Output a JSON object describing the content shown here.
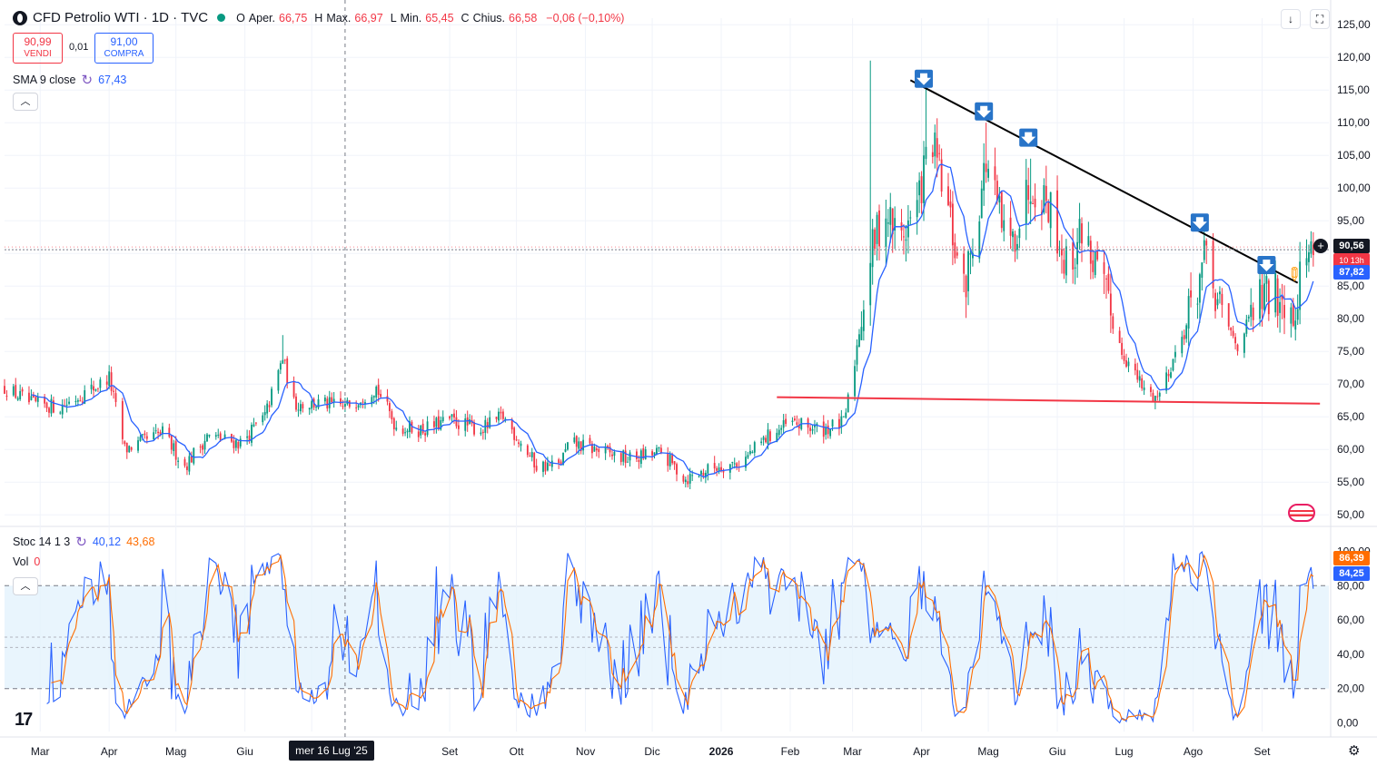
{
  "header": {
    "title": "CFD Petrolio WTI · 1D · TVC",
    "ohlc": [
      {
        "k": "O",
        "v": ""
      },
      {
        "k": "Aper.",
        "v": "66,75"
      },
      {
        "k": "H",
        "v": ""
      },
      {
        "k": "Max.",
        "v": "66,97"
      },
      {
        "k": "L",
        "v": ""
      },
      {
        "k": "Min.",
        "v": "65,45"
      },
      {
        "k": "C",
        "v": ""
      },
      {
        "k": "Chius.",
        "v": "66,58"
      }
    ],
    "change": "−0,06 (−0,10%)",
    "sell_price": "90,99",
    "sell_label": "VENDI",
    "spread": "0,01",
    "buy_price": "91,00",
    "buy_label": "COMPRA"
  },
  "indicators": {
    "sma_label": "SMA 9 close",
    "sma_value": "67,43",
    "stoch_label": "Stoc 14 1 3",
    "stoch_k": "40,12",
    "stoch_d": "43,68",
    "vol_label": "Vol",
    "vol_value": "0"
  },
  "price_tags": {
    "last": "90,56",
    "sub": "10 13h",
    "sma": "87,82",
    "stoch_d": "86,39",
    "stoch_k": "84,25"
  },
  "crosshair_date": "mer 16 Lug '25",
  "colors": {
    "up": "#089981",
    "down": "#f23645",
    "sma": "#2962ff",
    "stoch_k": "#2962ff",
    "stoch_d": "#ff6d00",
    "trend": "#000000",
    "support": "#f23645",
    "stoch_band": "#e3f2fd"
  },
  "chart_data": {
    "type": "candlestick",
    "y_axis_labels": [
      "125,00",
      "120,00",
      "115,00",
      "110,00",
      "105,00",
      "100,00",
      "95,00",
      "90,00",
      "85,00",
      "80,00",
      "75,00",
      "70,00",
      "65,00",
      "60,00",
      "55,00",
      "50,00"
    ],
    "y_range": [
      48.5,
      126
    ],
    "x_axis_labels": [
      "Mar",
      "Apr",
      "Mag",
      "Giu",
      "Lug",
      "Set",
      "Ott",
      "Nov",
      "Dic",
      "2026",
      "Feb",
      "Mar",
      "Apr",
      "Mag",
      "Giu",
      "Lug",
      "Ago",
      "Set"
    ],
    "x_axis_label_dates": [
      "2025-03-01",
      "2025-04-01",
      "2025-05-01",
      "2025-06-01",
      "2025-07-01",
      "2025-09-01",
      "2025-10-01",
      "2025-11-01",
      "2025-12-01",
      "2026-01-01",
      "2026-02-01",
      "2026-03-01",
      "2026-04-01",
      "2026-05-01",
      "2026-06-01",
      "2026-07-01",
      "2026-08-01",
      "2026-09-01"
    ],
    "date_range": [
      "2025-02-13",
      "2026-10-01"
    ],
    "price_anchors": [
      [
        "2025-02-13",
        69.5
      ],
      [
        "2025-02-25",
        67
      ],
      [
        "2025-03-10",
        66.5
      ],
      [
        "2025-03-28",
        70
      ],
      [
        "2025-04-01",
        71
      ],
      [
        "2025-04-08",
        60
      ],
      [
        "2025-04-15",
        61
      ],
      [
        "2025-04-25",
        62.5
      ],
      [
        "2025-05-05",
        57.5
      ],
      [
        "2025-05-15",
        62
      ],
      [
        "2025-05-30",
        61
      ],
      [
        "2025-06-10",
        65
      ],
      [
        "2025-06-18",
        74
      ],
      [
        "2025-06-23",
        67
      ],
      [
        "2025-07-05",
        67
      ],
      [
        "2025-07-16",
        66.5
      ],
      [
        "2025-07-30",
        69.5
      ],
      [
        "2025-08-08",
        63.5
      ],
      [
        "2025-08-20",
        63
      ],
      [
        "2025-09-01",
        64.5
      ],
      [
        "2025-09-15",
        63
      ],
      [
        "2025-09-25",
        65
      ],
      [
        "2025-10-10",
        57.5
      ],
      [
        "2025-10-20",
        57.5
      ],
      [
        "2025-10-25",
        61
      ],
      [
        "2025-11-05",
        60
      ],
      [
        "2025-11-20",
        58.5
      ],
      [
        "2025-12-05",
        59.5
      ],
      [
        "2025-12-16",
        55.5
      ],
      [
        "2025-12-31",
        57.5
      ],
      [
        "2026-01-10",
        58
      ],
      [
        "2026-01-22",
        62
      ],
      [
        "2026-02-01",
        64
      ],
      [
        "2026-02-15",
        63
      ],
      [
        "2026-02-25",
        64
      ],
      [
        "2026-03-01",
        71
      ],
      [
        "2026-03-08",
        88
      ],
      [
        "2026-03-15",
        97
      ],
      [
        "2026-03-22",
        92
      ],
      [
        "2026-03-30",
        97
      ],
      [
        "2026-04-05",
        108
      ],
      [
        "2026-04-12",
        98
      ],
      [
        "2026-04-20",
        84
      ],
      [
        "2026-04-30",
        104
      ],
      [
        "2026-05-10",
        90
      ],
      [
        "2026-05-20",
        101
      ],
      [
        "2026-05-28",
        98
      ],
      [
        "2026-06-06",
        87
      ],
      [
        "2026-06-12",
        94
      ],
      [
        "2026-06-20",
        86
      ],
      [
        "2026-06-30",
        75
      ],
      [
        "2026-07-10",
        69
      ],
      [
        "2026-07-16",
        68
      ],
      [
        "2026-07-28",
        78
      ],
      [
        "2026-08-06",
        89
      ],
      [
        "2026-08-13",
        81
      ],
      [
        "2026-08-21",
        76
      ],
      [
        "2026-08-31",
        83
      ],
      [
        "2026-09-10",
        84
      ],
      [
        "2026-09-15",
        81
      ],
      [
        "2026-09-20",
        90
      ],
      [
        "2026-09-24",
        90.5
      ]
    ],
    "spikes": [
      {
        "date": "2026-03-09",
        "high": 119.5
      },
      {
        "date": "2026-04-03",
        "high": 115.5
      },
      {
        "date": "2026-04-30",
        "high": 110
      },
      {
        "date": "2026-05-20",
        "high": 104.5
      },
      {
        "date": "2025-06-18",
        "high": 77.5
      }
    ],
    "annotations": {
      "resistance_line": {
        "start": [
          "2026-03-27",
          116.5
        ],
        "end": [
          "2026-09-17",
          85.5
        ]
      },
      "support_line": {
        "start": [
          "2026-01-26",
          68
        ],
        "end": [
          "2026-09-27",
          67
        ]
      },
      "sell_arrows": [
        {
          "date": "2026-04-02",
          "price": 114.5
        },
        {
          "date": "2026-04-29",
          "price": 109.5
        },
        {
          "date": "2026-05-19",
          "price": 105.5
        },
        {
          "date": "2026-08-04",
          "price": 92.5
        },
        {
          "date": "2026-09-03",
          "price": 86
        }
      ],
      "crosshair_date": "2025-07-16"
    },
    "stoch_axis_labels": [
      "100,00",
      "80,00",
      "60,00",
      "40,00",
      "20,00",
      "0,00"
    ],
    "stoch_range": [
      -5,
      105
    ],
    "stoch_bands": [
      20,
      80
    ],
    "stoch_midlines": [
      44,
      50
    ]
  }
}
